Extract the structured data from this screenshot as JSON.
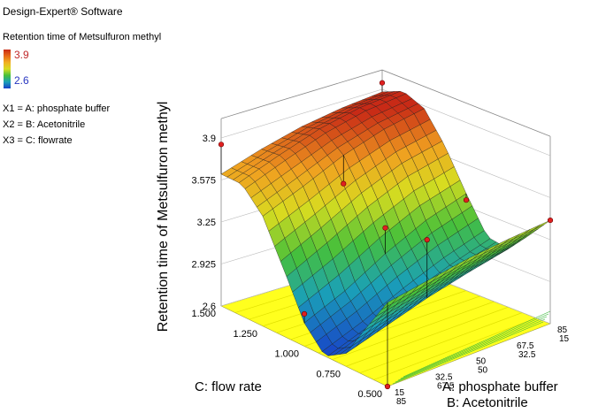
{
  "header": {
    "software": "Design-Expert® Software",
    "response": "Retention time of Metsulfuron methyl"
  },
  "colorbar": {
    "max_label": "3.9",
    "min_label": "2.6",
    "max_color": "#c0282a",
    "min_color": "#2836c0"
  },
  "factors": [
    "X1 = A: phosphate buffer",
    "X2 = B: Acetonitrile",
    "X3 = C: flowrate"
  ],
  "chart_data": {
    "type": "surface",
    "zlabel": "Retention time of Metsulfuron methyl",
    "xlabel": "C: flow rate",
    "ylabel_a": "A: phosphate buffer",
    "ylabel_b": "B: Acetonitrile",
    "zlim": [
      2.6,
      3.9
    ],
    "z_ticks": [
      "2.6",
      "2.925",
      "3.25",
      "3.575",
      "3.9"
    ],
    "x_ticks": [
      "0.500",
      "0.750",
      "1.000",
      "1.250",
      "1.500"
    ],
    "a_ticks": [
      "15",
      "32.5",
      "50",
      "67.5",
      "85"
    ],
    "b_ticks": [
      "85",
      "67.5",
      "50",
      "32.5",
      "15"
    ],
    "surface": {
      "description_x": "flow rate",
      "flow_rate": [
        0.5,
        0.625,
        0.75,
        0.875,
        1.0,
        1.125,
        1.25,
        1.375,
        1.5
      ],
      "a_buffer": [
        15,
        32.5,
        50,
        67.5,
        85
      ],
      "retention": [
        [
          3.4,
          3.22,
          3.05,
          3.08,
          3.35,
          3.65,
          3.88,
          3.95,
          3.88
        ],
        [
          3.38,
          3.18,
          2.98,
          2.98,
          3.25,
          3.58,
          3.82,
          3.92,
          3.85
        ],
        [
          3.35,
          3.12,
          2.9,
          2.86,
          3.1,
          3.45,
          3.72,
          3.85,
          3.8
        ],
        [
          3.3,
          3.05,
          2.8,
          2.72,
          2.92,
          3.28,
          3.58,
          3.74,
          3.72
        ],
        [
          3.25,
          2.98,
          2.7,
          2.6,
          2.78,
          3.12,
          3.45,
          3.62,
          3.62
        ]
      ]
    },
    "design_points": [
      {
        "c": 1.5,
        "a": 15,
        "z": 3.95
      },
      {
        "c": 1.5,
        "a": 85,
        "z": 3.85
      },
      {
        "c": 1.0,
        "a": 50,
        "z": 3.3
      },
      {
        "c": 0.5,
        "a": 15,
        "z": 3.4
      },
      {
        "c": 0.5,
        "a": 85,
        "z": 2.6
      },
      {
        "c": 1.0,
        "a": 85,
        "z": 2.85
      },
      {
        "c": 0.75,
        "a": 50,
        "z": 3.35
      },
      {
        "c": 1.25,
        "a": 50,
        "z": 3.5
      },
      {
        "c": 1.0,
        "a": 15,
        "z": 3.3
      }
    ]
  }
}
